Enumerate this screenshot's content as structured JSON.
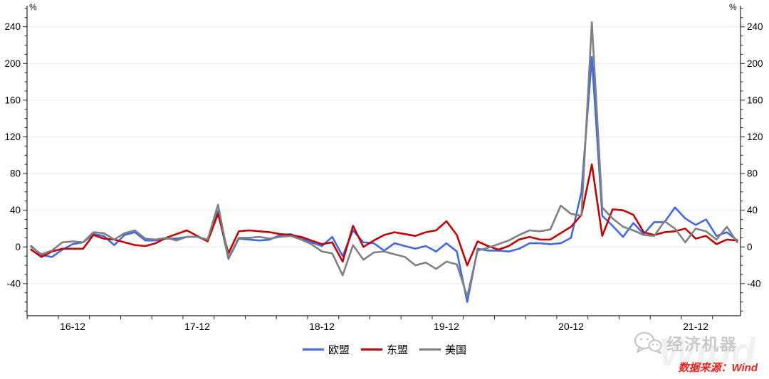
{
  "chart": {
    "y_axis": {
      "unit": "%",
      "major_ticks": [
        240,
        200,
        160,
        120,
        80,
        40,
        0,
        -40
      ],
      "minor_step": 10,
      "min": -75,
      "max": 263,
      "mirrored_right_axis": true,
      "grid": "horizontal-major"
    },
    "x_axis": {
      "major_labels": [
        {
          "text": "16-12",
          "month_index": 4
        },
        {
          "text": "17-12",
          "month_index": 16
        },
        {
          "text": "18-12",
          "month_index": 28
        },
        {
          "text": "19-12",
          "month_index": 40
        },
        {
          "text": "20-12",
          "month_index": 52
        },
        {
          "text": "21-12",
          "month_index": 64
        }
      ],
      "minor_tick_every_months": 3
    }
  },
  "chart_data": {
    "type": "line",
    "title": "",
    "x": [
      "16-08",
      "16-09",
      "16-10",
      "16-11",
      "16-12",
      "17-01",
      "17-02",
      "17-03",
      "17-04",
      "17-05",
      "17-06",
      "17-07",
      "17-08",
      "17-09",
      "17-10",
      "17-11",
      "17-12",
      "18-01",
      "18-02",
      "18-03",
      "18-04",
      "18-05",
      "18-06",
      "18-07",
      "18-08",
      "18-09",
      "18-10",
      "18-11",
      "18-12",
      "19-01",
      "19-02",
      "19-03",
      "19-04",
      "19-05",
      "19-06",
      "19-07",
      "19-08",
      "19-09",
      "19-10",
      "19-11",
      "19-12",
      "20-01",
      "20-02",
      "20-03",
      "20-04",
      "20-05",
      "20-06",
      "20-07",
      "20-08",
      "20-09",
      "20-10",
      "20-11",
      "20-12",
      "21-01",
      "21-02",
      "21-03",
      "21-04",
      "21-05",
      "21-06",
      "21-07",
      "21-08",
      "21-09",
      "21-10",
      "21-11",
      "21-12",
      "22-01",
      "22-02",
      "22-03",
      "22-04"
    ],
    "series": [
      {
        "name": "欧盟",
        "color": "#4169E1",
        "values": [
          1,
          -9,
          -11,
          -3,
          3,
          5,
          14,
          12,
          2,
          13,
          16,
          7,
          7,
          9,
          9,
          11,
          11,
          7,
          39,
          -13,
          9,
          8,
          7,
          8,
          13,
          14,
          9,
          5,
          1,
          11,
          -10,
          18,
          5,
          4,
          -4,
          4,
          1,
          -2,
          1,
          -5,
          4,
          -5,
          -60,
          -2,
          -4,
          -4,
          -5,
          -2,
          4,
          4,
          3,
          4,
          10,
          60,
          207,
          34,
          23,
          11,
          26,
          14,
          27,
          27,
          43,
          31,
          24,
          30,
          12,
          16,
          7
        ]
      },
      {
        "name": "东盟",
        "color": "#C00000",
        "values": [
          -3,
          -11,
          -5,
          -2,
          -2,
          -2,
          13,
          9,
          8,
          5,
          2,
          1,
          4,
          10,
          14,
          18,
          12,
          6,
          36,
          -7,
          17,
          18,
          17,
          16,
          14,
          13,
          11,
          7,
          3,
          5,
          -16,
          23,
          0,
          7,
          13,
          16,
          14,
          12,
          16,
          18,
          28,
          13,
          -20,
          6,
          1,
          -3,
          1,
          8,
          11,
          8,
          8,
          15,
          22,
          35,
          90,
          12,
          41,
          40,
          35,
          16,
          13,
          16,
          17,
          20,
          9,
          12,
          3,
          8,
          7
        ]
      },
      {
        "name": "美国",
        "color": "#808080",
        "values": [
          0,
          -8,
          -4,
          5,
          6,
          5,
          16,
          15,
          8,
          15,
          18,
          9,
          8,
          10,
          7,
          11,
          11,
          8,
          46,
          -12,
          10,
          10,
          11,
          9,
          11,
          12,
          8,
          3,
          -5,
          -7,
          -31,
          2,
          -14,
          -6,
          -5,
          -8,
          -11,
          -20,
          -17,
          -24,
          -16,
          -19,
          -54,
          -4,
          -1,
          3,
          7,
          13,
          18,
          17,
          19,
          45,
          36,
          34,
          245,
          43,
          31,
          22,
          18,
          13,
          12,
          28,
          20,
          5,
          20,
          17,
          8,
          22,
          5
        ]
      }
    ],
    "ylim": [
      -75,
      263
    ],
    "y_unit": "%",
    "legend_position": "bottom-center",
    "grid": "horizontal-major"
  },
  "legend": {
    "items": [
      {
        "label": "欧盟",
        "color": "#4169E1"
      },
      {
        "label": "东盟",
        "color": "#C00000"
      },
      {
        "label": "美国",
        "color": "#808080"
      }
    ]
  },
  "watermark": {
    "brand": "经济机器",
    "source_label": "数据来源：Wind",
    "faint_text": "Wind",
    "icon": "wechat-icon"
  },
  "colors": {
    "axis": "#222222",
    "grid": "#e9e9e9",
    "tick_label": "#000000",
    "background": "#ffffff"
  }
}
